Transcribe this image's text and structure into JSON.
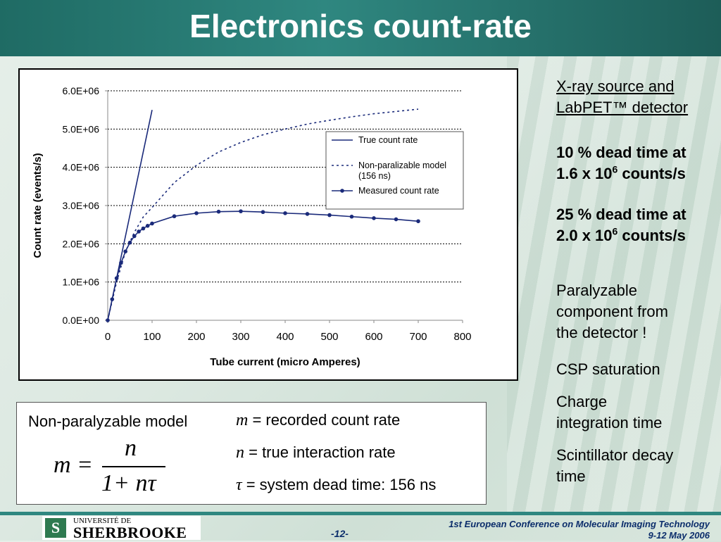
{
  "title": "Electronics count-rate",
  "chart_data": {
    "type": "line",
    "xlabel": "Tube current (micro Amperes)",
    "ylabel": "Count rate (events/s)",
    "xlim": [
      0,
      800
    ],
    "ylim": [
      0,
      6000000
    ],
    "x_ticks": [
      "0",
      "100",
      "200",
      "300",
      "400",
      "500",
      "600",
      "700",
      "800"
    ],
    "y_ticks": [
      "0.0E+00",
      "1.0E+06",
      "2.0E+06",
      "3.0E+06",
      "4.0E+06",
      "5.0E+06",
      "6.0E+06"
    ],
    "grid": "horizontal",
    "legend_position": "right",
    "series": [
      {
        "name": "True count rate",
        "style": "solid",
        "color": "#1a2a7a",
        "x": [
          0,
          100
        ],
        "y": [
          0,
          5500000
        ]
      },
      {
        "name": "Non-paralizable model (156 ns)",
        "style": "dotted",
        "color": "#1a2a7a",
        "x": [
          0,
          20,
          40,
          60,
          80,
          100,
          150,
          200,
          250,
          300,
          350,
          400,
          450,
          500,
          550,
          600,
          650,
          700
        ],
        "y": [
          0,
          1000000,
          1800000,
          2300000,
          2700000,
          2950000,
          3600000,
          4050000,
          4400000,
          4650000,
          4850000,
          5000000,
          5130000,
          5230000,
          5320000,
          5400000,
          5460000,
          5520000
        ]
      },
      {
        "name": "Measured count rate",
        "style": "solid-marker",
        "color": "#1a2a7a",
        "x": [
          0,
          10,
          20,
          30,
          40,
          50,
          60,
          70,
          80,
          90,
          100,
          150,
          200,
          250,
          300,
          350,
          400,
          450,
          500,
          550,
          600,
          650,
          700
        ],
        "y": [
          0,
          550000,
          1100000,
          1500000,
          1800000,
          2030000,
          2200000,
          2320000,
          2400000,
          2470000,
          2530000,
          2720000,
          2800000,
          2840000,
          2850000,
          2830000,
          2800000,
          2780000,
          2750000,
          2710000,
          2670000,
          2640000,
          2590000
        ]
      }
    ]
  },
  "right_panel": {
    "heading_line1": "X-ray source and",
    "heading_line2": "LabPET™ detector",
    "dead10_line1": "10 % dead time at",
    "dead10_base": "1.6 x 10",
    "dead10_exp": "6",
    "dead10_unit": " counts/s",
    "dead25_line1": "25 % dead time at",
    "dead25_base": "2.0 x 10",
    "dead25_exp": "6",
    "dead25_unit": " counts/s",
    "para_line1": "Paralyzable",
    "para_line2": "component from",
    "para_line3": "the detector !",
    "csp": "CSP saturation",
    "charge_line1": "Charge",
    "charge_line2": "integration time",
    "scint_line1": "Scintillator decay",
    "scint_line2": "time"
  },
  "formula_box": {
    "title": "Non-paralyzable model",
    "def_m_var": "m",
    "def_m_text": " = recorded count rate",
    "def_n_var": "n",
    "def_n_text": " = true interaction rate",
    "def_tau_var": "τ",
    "def_tau_text": " = system dead time: 156 ns",
    "eq_lhs": "m =",
    "eq_num": "n",
    "eq_den": "1+ nτ"
  },
  "footer": {
    "logo_top": "UNIVERSITÉ DE",
    "logo_main": "SHERBROOKE",
    "logo_mark": "S",
    "page_number": "-12-",
    "conference": "1st European Conference on Molecular Imaging Technology",
    "dates": "9-12 May 2006"
  }
}
